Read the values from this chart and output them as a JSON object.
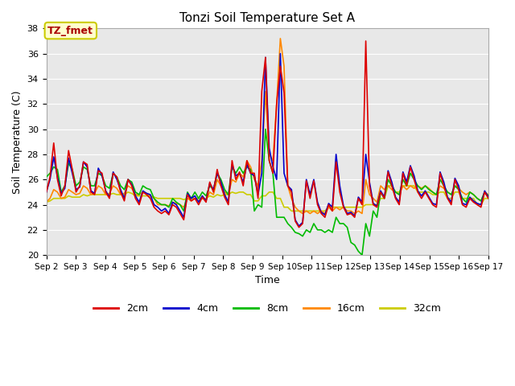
{
  "title": "Tonzi Soil Temperature Set A",
  "xlabel": "Time",
  "ylabel": "Soil Temperature (C)",
  "ylim": [
    20,
    38
  ],
  "xlim": [
    2,
    17
  ],
  "annotation_text": "TZ_fmet",
  "annotation_color": "#aa0000",
  "annotation_bg": "#ffffcc",
  "annotation_border": "#cccc00",
  "fig_bg": "#ffffff",
  "plot_bg": "#e8e8e8",
  "grid_color": "#ffffff",
  "colors": {
    "2cm": "#dd0000",
    "4cm": "#0000cc",
    "8cm": "#00bb00",
    "16cm": "#ff8800",
    "32cm": "#cccc00"
  },
  "lw": 1.2,
  "x_ticks": [
    "Sep 2",
    "Sep 3",
    "Sep 4",
    "Sep 5",
    "Sep 6",
    "Sep 7",
    "Sep 8",
    "Sep 9",
    "Sep 10",
    "Sep 11",
    "Sep 12",
    "Sep 13",
    "Sep 14",
    "Sep 15",
    "Sep 16",
    "Sep 17"
  ],
  "x_num": [
    2,
    3,
    4,
    5,
    6,
    7,
    8,
    9,
    10,
    11,
    12,
    13,
    14,
    15,
    16,
    17
  ],
  "y_ticks": [
    20,
    22,
    24,
    26,
    28,
    30,
    32,
    34,
    36,
    38
  ],
  "data_2cm": [
    25.0,
    26.2,
    28.9,
    26.0,
    24.7,
    25.5,
    28.3,
    26.8,
    25.0,
    25.5,
    27.4,
    27.2,
    25.0,
    24.8,
    26.7,
    26.5,
    25.0,
    24.5,
    26.5,
    26.2,
    25.0,
    24.3,
    26.0,
    25.5,
    24.5,
    24.0,
    25.0,
    24.8,
    24.5,
    23.8,
    23.5,
    23.3,
    23.5,
    23.2,
    24.0,
    23.8,
    23.3,
    22.8,
    24.8,
    24.3,
    24.5,
    24.0,
    24.6,
    24.2,
    25.8,
    25.0,
    26.8,
    25.5,
    24.6,
    24.0,
    27.5,
    26.0,
    26.6,
    25.5,
    27.5,
    26.5,
    26.5,
    24.5,
    33.0,
    35.7,
    27.5,
    26.5,
    32.0,
    35.0,
    32.9,
    25.5,
    25.0,
    22.7,
    22.2,
    22.5,
    25.9,
    24.5,
    25.9,
    24.0,
    23.3,
    23.0,
    24.0,
    23.5,
    27.4,
    25.0,
    23.8,
    23.2,
    23.3,
    23.0,
    24.5,
    24.0,
    37.0,
    25.5,
    24.0,
    23.8,
    25.0,
    24.5,
    26.6,
    25.5,
    24.5,
    24.0,
    26.5,
    25.5,
    27.0,
    26.0,
    25.0,
    24.5,
    25.0,
    24.5,
    24.0,
    23.8,
    26.5,
    25.5,
    24.5,
    24.0,
    26.0,
    25.2,
    24.0,
    23.8,
    24.5,
    24.2,
    24.0,
    23.8,
    25.0,
    24.5
  ],
  "data_4cm": [
    25.0,
    26.0,
    27.8,
    26.2,
    24.9,
    25.3,
    27.7,
    26.5,
    25.2,
    25.4,
    27.4,
    27.0,
    25.1,
    24.9,
    26.9,
    26.3,
    25.1,
    24.6,
    26.6,
    26.0,
    25.2,
    24.5,
    26.0,
    25.6,
    24.7,
    24.2,
    25.1,
    24.9,
    24.8,
    24.0,
    23.8,
    23.5,
    23.7,
    23.3,
    24.2,
    24.0,
    23.5,
    23.0,
    24.9,
    24.5,
    24.7,
    24.2,
    24.7,
    24.3,
    25.7,
    25.2,
    26.5,
    25.8,
    24.8,
    24.2,
    27.2,
    26.3,
    26.5,
    25.8,
    27.2,
    26.5,
    26.3,
    24.8,
    26.5,
    35.7,
    28.5,
    27.0,
    26.0,
    36.0,
    26.5,
    25.5,
    25.2,
    22.8,
    22.3,
    22.6,
    26.0,
    24.8,
    26.0,
    24.2,
    23.4,
    23.2,
    24.1,
    23.8,
    28.0,
    25.5,
    23.9,
    23.3,
    23.4,
    23.1,
    24.6,
    24.2,
    28.0,
    25.8,
    24.1,
    23.9,
    25.1,
    24.6,
    26.7,
    25.8,
    24.6,
    24.2,
    26.6,
    25.8,
    27.1,
    26.3,
    25.1,
    24.7,
    25.1,
    24.6,
    24.1,
    24.0,
    26.6,
    25.8,
    24.6,
    24.2,
    26.1,
    25.5,
    24.1,
    24.0,
    24.6,
    24.3,
    24.1,
    24.0,
    25.1,
    24.6
  ],
  "data_8cm": [
    26.2,
    26.5,
    27.0,
    26.8,
    25.0,
    25.5,
    27.3,
    26.8,
    25.5,
    25.8,
    27.0,
    26.8,
    25.5,
    25.5,
    26.5,
    26.3,
    25.5,
    25.3,
    26.5,
    26.2,
    25.5,
    25.2,
    26.0,
    25.8,
    25.0,
    24.8,
    25.5,
    25.3,
    25.2,
    24.5,
    24.2,
    24.0,
    24.0,
    23.8,
    24.5,
    24.2,
    24.0,
    23.5,
    25.0,
    24.5,
    25.0,
    24.5,
    25.0,
    24.7,
    25.5,
    25.2,
    26.5,
    26.0,
    25.2,
    24.8,
    27.0,
    26.5,
    27.0,
    26.5,
    27.0,
    26.8,
    23.5,
    24.0,
    23.8,
    30.0,
    27.5,
    26.5,
    23.0,
    23.0,
    23.0,
    22.5,
    22.2,
    21.8,
    21.7,
    21.5,
    22.0,
    21.8,
    22.5,
    22.0,
    22.0,
    21.8,
    22.0,
    21.8,
    23.0,
    22.5,
    22.5,
    22.2,
    21.0,
    20.8,
    20.3,
    20.0,
    22.5,
    21.5,
    23.5,
    23.0,
    25.0,
    24.5,
    26.0,
    25.5,
    25.0,
    24.8,
    26.0,
    25.5,
    26.5,
    26.0,
    25.5,
    25.2,
    25.5,
    25.2,
    25.0,
    24.8,
    26.0,
    25.5,
    25.0,
    24.8,
    25.5,
    25.2,
    24.5,
    24.2,
    25.0,
    24.8,
    24.5,
    24.3,
    25.0,
    24.7
  ],
  "data_16cm": [
    24.2,
    24.5,
    25.2,
    25.0,
    24.5,
    24.6,
    25.2,
    25.0,
    24.8,
    24.9,
    25.5,
    25.3,
    24.8,
    24.9,
    25.5,
    25.3,
    24.8,
    24.9,
    25.5,
    25.3,
    24.8,
    24.9,
    25.5,
    25.3,
    24.8,
    24.8,
    25.0,
    24.9,
    24.7,
    24.5,
    24.0,
    24.0,
    24.0,
    23.9,
    24.2,
    24.1,
    24.0,
    23.8,
    24.5,
    24.3,
    24.5,
    24.3,
    24.5,
    24.4,
    25.0,
    24.8,
    26.0,
    25.5,
    25.0,
    24.8,
    26.0,
    25.8,
    26.5,
    26.2,
    27.5,
    27.0,
    26.0,
    25.5,
    27.5,
    33.0,
    28.0,
    27.5,
    32.0,
    37.2,
    35.0,
    25.5,
    24.5,
    23.8,
    23.5,
    23.3,
    23.5,
    23.3,
    23.5,
    23.3,
    23.5,
    23.3,
    23.8,
    23.5,
    23.8,
    23.6,
    23.8,
    23.5,
    23.5,
    23.3,
    23.5,
    23.3,
    26.0,
    24.8,
    24.5,
    24.2,
    25.5,
    25.2,
    25.5,
    25.2,
    25.0,
    24.8,
    25.5,
    25.2,
    25.5,
    25.3,
    25.5,
    25.3,
    25.5,
    25.3,
    25.0,
    24.8,
    25.5,
    25.3,
    25.0,
    24.8,
    25.5,
    25.3,
    25.0,
    24.8,
    25.0,
    24.8,
    24.5,
    24.3,
    25.0,
    24.8
  ],
  "data_32cm": [
    24.2,
    24.3,
    24.5,
    24.5,
    24.5,
    24.5,
    24.7,
    24.6,
    24.6,
    24.6,
    24.8,
    24.7,
    24.8,
    24.8,
    24.8,
    24.8,
    24.8,
    24.8,
    24.9,
    24.8,
    24.8,
    24.8,
    25.0,
    24.9,
    24.7,
    24.7,
    24.7,
    24.7,
    24.7,
    24.6,
    24.5,
    24.5,
    24.5,
    24.5,
    24.5,
    24.5,
    24.5,
    24.4,
    24.5,
    24.5,
    24.5,
    24.5,
    24.5,
    24.5,
    24.7,
    24.6,
    24.8,
    24.7,
    24.8,
    24.8,
    25.0,
    24.9,
    25.0,
    25.0,
    24.8,
    24.8,
    24.3,
    24.3,
    24.7,
    24.7,
    25.0,
    25.0,
    24.5,
    24.5,
    23.8,
    23.8,
    23.5,
    23.5,
    23.5,
    23.5,
    23.5,
    23.5,
    23.5,
    23.5,
    23.5,
    23.5,
    23.8,
    23.8,
    23.8,
    23.8,
    23.8,
    23.8,
    23.8,
    23.8,
    23.8,
    23.8,
    24.0,
    24.0,
    24.0,
    24.0,
    24.5,
    24.5,
    25.5,
    25.5,
    25.0,
    25.0,
    25.5,
    25.5,
    25.5,
    25.5,
    25.0,
    25.0,
    25.0,
    25.0,
    24.8,
    24.8,
    25.0,
    25.0,
    24.5,
    24.5,
    25.0,
    25.0,
    24.5,
    24.5,
    24.5,
    24.5,
    24.0,
    24.0,
    24.5,
    24.5
  ]
}
